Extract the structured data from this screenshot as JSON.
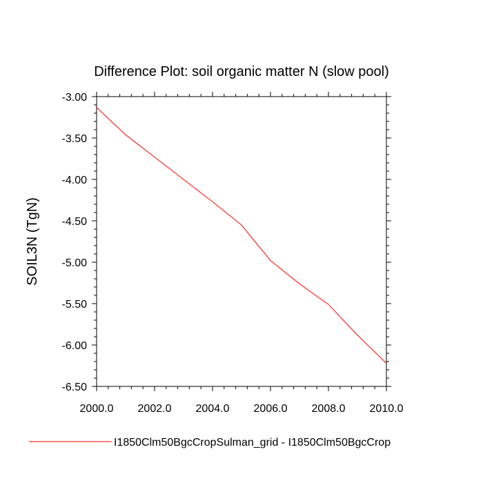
{
  "chart_data": {
    "type": "line",
    "title": "Difference Plot: soil organic matter N (slow pool)",
    "xlabel": "",
    "ylabel": "SOIL3N  (TgN)",
    "xlim": [
      2000.0,
      2010.0
    ],
    "ylim": [
      -6.5,
      -3.0
    ],
    "xticks": [
      "2000.0",
      "2002.0",
      "2004.0",
      "2006.0",
      "2008.0",
      "2010.0"
    ],
    "yticks": [
      "-3.00",
      "-3.50",
      "-4.00",
      "-4.50",
      "-5.00",
      "-5.50",
      "-6.00",
      "-6.50"
    ],
    "grid": false,
    "legend_position": "bottom",
    "series": [
      {
        "name": "I1850Clm50BgcCropSulman_grid - I1850Clm50BgcCrop",
        "color": "#ff0000",
        "x": [
          2000,
          2001,
          2002,
          2003,
          2004,
          2005,
          2006,
          2007,
          2008,
          2009,
          2010
        ],
        "values": [
          -3.13,
          -3.46,
          -3.73,
          -4.0,
          -4.27,
          -4.55,
          -4.98,
          -5.26,
          -5.51,
          -5.88,
          -6.22
        ]
      }
    ]
  }
}
